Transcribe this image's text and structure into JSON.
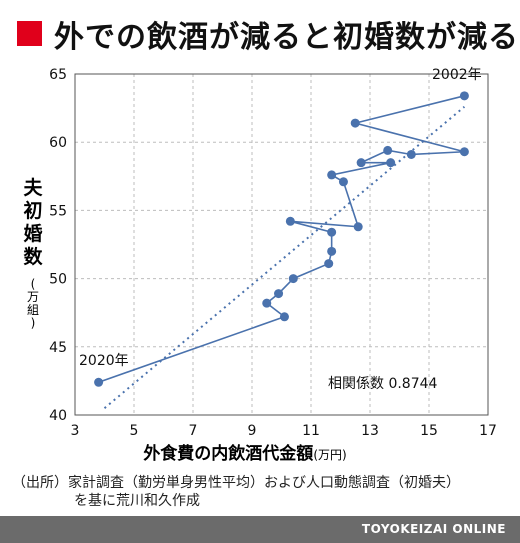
{
  "title": "外での飲酒が減ると初婚数が減る",
  "chart_data": {
    "type": "scatter",
    "title": "外での飲酒が減ると初婚数が減る",
    "xlabel": "外食費の内飲酒代金額",
    "xlabel_unit": "(万円)",
    "ylabel": "夫初婚数",
    "ylabel_unit": "(万組)",
    "xlim": [
      3,
      17
    ],
    "ylim": [
      40,
      65
    ],
    "xticks": [
      "3",
      "5",
      "7",
      "9",
      "11",
      "13",
      "15",
      "17"
    ],
    "yticks": [
      "40",
      "45",
      "50",
      "55",
      "60",
      "65"
    ],
    "grid": true,
    "points": [
      {
        "year": 2002,
        "x": 16.2,
        "y": 63.4
      },
      {
        "x": 12.5,
        "y": 61.4
      },
      {
        "x": 16.2,
        "y": 59.3
      },
      {
        "x": 14.4,
        "y": 59.1
      },
      {
        "x": 13.6,
        "y": 59.4
      },
      {
        "x": 12.7,
        "y": 58.5
      },
      {
        "x": 13.7,
        "y": 58.5
      },
      {
        "x": 11.7,
        "y": 57.6
      },
      {
        "x": 12.1,
        "y": 57.1
      },
      {
        "x": 12.6,
        "y": 53.8
      },
      {
        "x": 10.3,
        "y": 54.2
      },
      {
        "x": 11.7,
        "y": 53.4
      },
      {
        "x": 11.7,
        "y": 52.0
      },
      {
        "x": 11.6,
        "y": 51.1
      },
      {
        "x": 10.4,
        "y": 50.0
      },
      {
        "x": 9.9,
        "y": 48.9
      },
      {
        "x": 9.5,
        "y": 48.2
      },
      {
        "x": 10.1,
        "y": 47.2
      },
      {
        "year": 2020,
        "x": 3.8,
        "y": 42.4
      }
    ],
    "trendline": {
      "x1": 4.0,
      "y1": 40.5,
      "x2": 16.2,
      "y2": 62.6
    },
    "annotations": {
      "label_start": "2002年",
      "label_end": "2020年",
      "correlation": "相関係数 0.8744"
    },
    "colors": {
      "series": "#4a72ad",
      "grid": "#bdbdbd",
      "axis": "#555555"
    }
  },
  "source": {
    "line1": "（出所）家計調査（勤労単身男性平均）および人口動態調査（初婚夫）",
    "line2": "を基に荒川和久作成"
  },
  "footer": {
    "brand": "TOYOKEIZAI ONLINE"
  }
}
